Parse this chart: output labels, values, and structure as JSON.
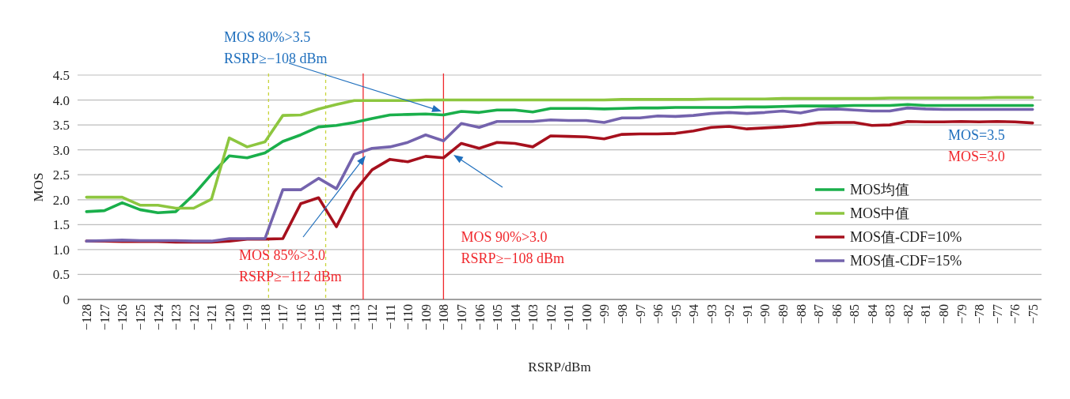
{
  "chart_data": {
    "type": "line",
    "xlabel": "RSRP/dBm",
    "ylabel": "MOS",
    "x": [
      -128,
      -127,
      -126,
      -125,
      -124,
      -123,
      -122,
      -121,
      -120,
      -119,
      -118,
      -117,
      -116,
      -115,
      -114,
      -113,
      -112,
      -111,
      -110,
      -109,
      -108,
      -107,
      -106,
      -105,
      -104,
      -103,
      -102,
      -101,
      -100,
      -99,
      -98,
      -97,
      -96,
      -95,
      -94,
      -93,
      -92,
      -91,
      -90,
      -89,
      -88,
      -87,
      -86,
      -85,
      -84,
      -83,
      -82,
      -81,
      -80,
      -79,
      -78,
      -77,
      -76,
      -75
    ],
    "xlim": [
      -128.5,
      -74.5
    ],
    "xticks": [
      {
        "value": -128,
        "label": "−128"
      },
      {
        "value": -127,
        "label": "−127"
      },
      {
        "value": -126,
        "label": "−126"
      },
      {
        "value": -125,
        "label": "−125"
      },
      {
        "value": -124,
        "label": "−124"
      },
      {
        "value": -123,
        "label": "−123"
      },
      {
        "value": -122,
        "label": "−122"
      },
      {
        "value": -121,
        "label": "−121"
      },
      {
        "value": -120,
        "label": "−120"
      },
      {
        "value": -119,
        "label": "−119"
      },
      {
        "value": -118,
        "label": "−118"
      },
      {
        "value": -117,
        "label": "−117"
      },
      {
        "value": -116,
        "label": "−116"
      },
      {
        "value": -115,
        "label": "−115"
      },
      {
        "value": -114,
        "label": "−114"
      },
      {
        "value": -113,
        "label": "−113"
      },
      {
        "value": -112,
        "label": "−112"
      },
      {
        "value": -111,
        "label": "−111"
      },
      {
        "value": -110,
        "label": "−110"
      },
      {
        "value": -109,
        "label": "−109"
      },
      {
        "value": -108,
        "label": "−108"
      },
      {
        "value": -107,
        "label": "−107"
      },
      {
        "value": -106,
        "label": "−106"
      },
      {
        "value": -105,
        "label": "−105"
      },
      {
        "value": -104,
        "label": "−104"
      },
      {
        "value": -103,
        "label": "−103"
      },
      {
        "value": -102,
        "label": "−102"
      },
      {
        "value": -101,
        "label": "−101"
      },
      {
        "value": -100,
        "label": "−100"
      },
      {
        "value": -99,
        "label": "−99"
      },
      {
        "value": -98,
        "label": "−98"
      },
      {
        "value": -97,
        "label": "−97"
      },
      {
        "value": -96,
        "label": "−96"
      },
      {
        "value": -95,
        "label": "−95"
      },
      {
        "value": -94,
        "label": "−94"
      },
      {
        "value": -93,
        "label": "−93"
      },
      {
        "value": -92,
        "label": "−92"
      },
      {
        "value": -91,
        "label": "−91"
      },
      {
        "value": -90,
        "label": "−90"
      },
      {
        "value": -89,
        "label": "−89"
      },
      {
        "value": -88,
        "label": "−88"
      },
      {
        "value": -87,
        "label": "−87"
      },
      {
        "value": -86,
        "label": "−86"
      },
      {
        "value": -85,
        "label": "−85"
      },
      {
        "value": -84,
        "label": "−84"
      },
      {
        "value": -83,
        "label": "−83"
      },
      {
        "value": -82,
        "label": "−82"
      },
      {
        "value": -81,
        "label": "−81"
      },
      {
        "value": -80,
        "label": "−80"
      },
      {
        "value": -79,
        "label": "−79"
      },
      {
        "value": -78,
        "label": "−78"
      },
      {
        "value": -77,
        "label": "−77"
      },
      {
        "value": -76,
        "label": "−76"
      },
      {
        "value": -75,
        "label": "−75"
      }
    ],
    "ylim": [
      0,
      4.5
    ],
    "yticks": [
      0,
      0.5,
      {
        "value": 1,
        "label": "1.0"
      },
      1.5,
      {
        "value": 2,
        "label": "2.0"
      },
      2.5,
      {
        "value": 3,
        "label": "3.0"
      },
      3.5,
      {
        "value": 4,
        "label": "4.0"
      },
      4.5
    ],
    "grid": "y",
    "legend": "right",
    "marker": "none",
    "line_style": "solid",
    "series": [
      {
        "name": "MOS均值",
        "color": "#1aaf4b",
        "values": [
          1.76,
          1.78,
          1.94,
          1.8,
          1.74,
          1.76,
          2.1,
          2.51,
          2.88,
          2.84,
          2.94,
          3.17,
          3.3,
          3.46,
          3.49,
          3.55,
          3.63,
          3.7,
          3.71,
          3.72,
          3.7,
          3.77,
          3.75,
          3.8,
          3.8,
          3.76,
          3.83,
          3.83,
          3.83,
          3.82,
          3.83,
          3.84,
          3.84,
          3.85,
          3.85,
          3.85,
          3.85,
          3.86,
          3.86,
          3.87,
          3.88,
          3.88,
          3.88,
          3.89,
          3.89,
          3.89,
          3.91,
          3.89,
          3.89,
          3.89,
          3.89,
          3.89,
          3.89,
          3.89
        ]
      },
      {
        "name": "MOS中值",
        "color": "#8dc63f",
        "values": [
          2.05,
          2.05,
          2.05,
          1.89,
          1.89,
          1.83,
          1.83,
          2.01,
          3.24,
          3.06,
          3.16,
          3.69,
          3.7,
          3.82,
          3.91,
          3.99,
          3.99,
          3.99,
          3.99,
          4.0,
          4.0,
          4.0,
          4.0,
          4.0,
          4.0,
          4.0,
          4.0,
          4.0,
          4.0,
          4.0,
          4.01,
          4.01,
          4.01,
          4.01,
          4.01,
          4.02,
          4.02,
          4.02,
          4.02,
          4.03,
          4.03,
          4.03,
          4.03,
          4.03,
          4.03,
          4.04,
          4.04,
          4.04,
          4.04,
          4.04,
          4.04,
          4.05,
          4.05,
          4.05
        ]
      },
      {
        "name": "MOS值-CDF=10%",
        "color": "#a6101d",
        "values": [
          1.17,
          1.17,
          1.16,
          1.16,
          1.16,
          1.15,
          1.15,
          1.15,
          1.17,
          1.21,
          1.21,
          1.22,
          1.92,
          2.04,
          1.46,
          2.16,
          2.6,
          2.81,
          2.76,
          2.87,
          2.84,
          3.13,
          3.03,
          3.15,
          3.13,
          3.06,
          3.28,
          3.27,
          3.26,
          3.22,
          3.31,
          3.32,
          3.32,
          3.33,
          3.38,
          3.45,
          3.47,
          3.42,
          3.44,
          3.46,
          3.49,
          3.54,
          3.55,
          3.55,
          3.49,
          3.5,
          3.57,
          3.56,
          3.56,
          3.57,
          3.56,
          3.57,
          3.56,
          3.54
        ]
      },
      {
        "name": "MOS值-CDF=15%",
        "color": "#7463ad",
        "values": [
          1.17,
          1.18,
          1.19,
          1.18,
          1.18,
          1.18,
          1.17,
          1.17,
          1.22,
          1.22,
          1.22,
          2.2,
          2.2,
          2.43,
          2.22,
          2.91,
          3.03,
          3.06,
          3.15,
          3.3,
          3.18,
          3.53,
          3.45,
          3.57,
          3.57,
          3.57,
          3.6,
          3.59,
          3.59,
          3.55,
          3.64,
          3.64,
          3.68,
          3.67,
          3.69,
          3.73,
          3.75,
          3.73,
          3.75,
          3.78,
          3.74,
          3.81,
          3.82,
          3.8,
          3.78,
          3.78,
          3.84,
          3.82,
          3.81,
          3.81,
          3.81,
          3.81,
          3.81,
          3.81
        ]
      }
    ],
    "ref_lines": [
      {
        "axis": "x",
        "value": -117.8,
        "color": "#c8d43a",
        "line_style": "dashed"
      },
      {
        "axis": "x",
        "value": -114.6,
        "color": "#c8d43a",
        "line_style": "dashed"
      },
      {
        "axis": "x",
        "value": -112.5,
        "color": "#f0282d",
        "line_style": "solid",
        "label": "MOS 85%>3.0\nRSRP≥−112 dBm"
      },
      {
        "axis": "x",
        "value": -108,
        "color": "#f0282d",
        "line_style": "solid",
        "label": "MOS 90%>3.0\nRSRP≥−108 dBm"
      }
    ],
    "annotations": [
      "MOS 80%>3.5\nRSRP≥−108 dBm",
      "MOS=3.5",
      "MOS=3.0"
    ]
  }
}
